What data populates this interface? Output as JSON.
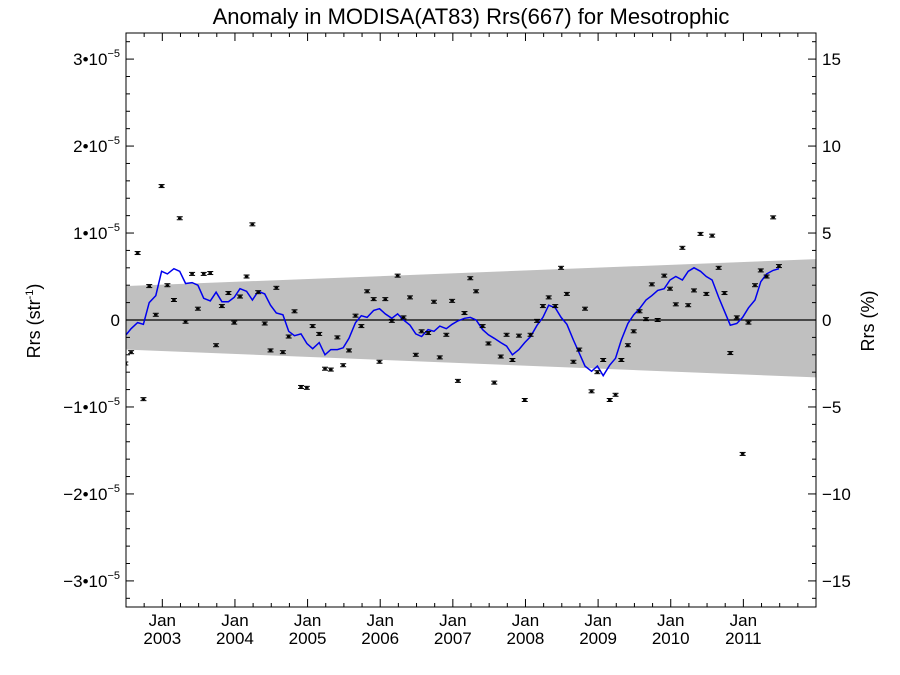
{
  "chart_data": {
    "type": "scatter",
    "title": "Anomaly in MODISA(AT83) Rrs(667) for Mesotrophic",
    "ylabel_left": "Rrs (str",
    "ylabel_left_exp": "-1",
    "ylabel_left_close": ")",
    "ylabel_right": "Rrs (%)",
    "xlim": [
      2002.5,
      2012.0
    ],
    "ylim": [
      -3.3e-05,
      3.3e-05
    ],
    "left_ticks": [
      {
        "value": 3e-05,
        "mantissa": "3",
        "sep": "•",
        "base": "10",
        "exp": "−5"
      },
      {
        "value": 2e-05,
        "mantissa": "2",
        "sep": "•",
        "base": "10",
        "exp": "−5"
      },
      {
        "value": 1e-05,
        "mantissa": "1",
        "sep": "•",
        "base": "10",
        "exp": "−5"
      },
      {
        "value": 0,
        "mantissa": "0",
        "sep": "",
        "base": "",
        "exp": ""
      },
      {
        "value": -1e-05,
        "mantissa": "−1",
        "sep": "•",
        "base": "10",
        "exp": "−5"
      },
      {
        "value": -2e-05,
        "mantissa": "−2",
        "sep": "•",
        "base": "10",
        "exp": "−5"
      },
      {
        "value": -3e-05,
        "mantissa": "−3",
        "sep": "•",
        "base": "10",
        "exp": "−5"
      }
    ],
    "right_ticks": [
      {
        "value": 15,
        "label": "15"
      },
      {
        "value": 10,
        "label": "10"
      },
      {
        "value": 5,
        "label": "5"
      },
      {
        "value": 0,
        "label": "0"
      },
      {
        "value": -5,
        "label": "−5"
      },
      {
        "value": -10,
        "label": "−10"
      },
      {
        "value": -15,
        "label": "−15"
      }
    ],
    "right_scale_rrs_per_percent": 2e-06,
    "x_ticks": [
      {
        "value": 2003.0,
        "month": "Jan",
        "year": "2003"
      },
      {
        "value": 2004.0,
        "month": "Jan",
        "year": "2004"
      },
      {
        "value": 2005.0,
        "month": "Jan",
        "year": "2005"
      },
      {
        "value": 2006.0,
        "month": "Jan",
        "year": "2006"
      },
      {
        "value": 2007.0,
        "month": "Jan",
        "year": "2007"
      },
      {
        "value": 2008.0,
        "month": "Jan",
        "year": "2008"
      },
      {
        "value": 2009.0,
        "month": "Jan",
        "year": "2009"
      },
      {
        "value": 2010.0,
        "month": "Jan",
        "year": "2010"
      },
      {
        "value": 2011.0,
        "month": "Jan",
        "year": "2011"
      }
    ],
    "band": {
      "x": [
        2002.5,
        2012.0
      ],
      "upper": [
        3.9e-06,
        7e-06
      ],
      "lower": [
        -3.4e-06,
        -6.6e-06
      ]
    },
    "zero_line": 0,
    "colors": {
      "band": "#c0c0c0",
      "smooth": "#0000ee",
      "points": "#000000",
      "zero": "#000000"
    },
    "points": [
      [
        2002.49,
        -5e-06
      ],
      [
        2002.57,
        -3.7e-06
      ],
      [
        2002.66,
        7.7e-06
      ],
      [
        2002.74,
        -9.1e-06
      ],
      [
        2002.82,
        3.9e-06
      ],
      [
        2002.91,
        6e-07
      ],
      [
        2002.99,
        1.54e-05
      ],
      [
        2003.07,
        4e-06
      ],
      [
        2003.16,
        2.3e-06
      ],
      [
        2003.24,
        1.17e-05
      ],
      [
        2003.32,
        -2e-07
      ],
      [
        2003.41,
        5.3e-06
      ],
      [
        2003.49,
        1.3e-06
      ],
      [
        2003.57,
        5.3e-06
      ],
      [
        2003.66,
        5.4e-06
      ],
      [
        2003.74,
        -2.9e-06
      ],
      [
        2003.82,
        1.6e-06
      ],
      [
        2003.91,
        3.1e-06
      ],
      [
        2003.99,
        -3e-07
      ],
      [
        2004.07,
        2.7e-06
      ],
      [
        2004.16,
        5e-06
      ],
      [
        2004.24,
        1.1e-05
      ],
      [
        2004.32,
        3.2e-06
      ],
      [
        2004.41,
        -4e-07
      ],
      [
        2004.49,
        -3.5e-06
      ],
      [
        2004.57,
        3.7e-06
      ],
      [
        2004.66,
        -3.7e-06
      ],
      [
        2004.74,
        -1.9e-06
      ],
      [
        2004.82,
        1e-06
      ],
      [
        2004.91,
        -7.7e-06
      ],
      [
        2004.99,
        -7.8e-06
      ],
      [
        2005.07,
        -7e-07
      ],
      [
        2005.16,
        -1.6e-06
      ],
      [
        2005.24,
        -5.6e-06
      ],
      [
        2005.32,
        -5.7e-06
      ],
      [
        2005.41,
        -2e-06
      ],
      [
        2005.49,
        -5.2e-06
      ],
      [
        2005.57,
        -3.5e-06
      ],
      [
        2005.66,
        5e-07
      ],
      [
        2005.74,
        -7e-07
      ],
      [
        2005.82,
        3.3e-06
      ],
      [
        2005.91,
        2.4e-06
      ],
      [
        2005.99,
        -4.8e-06
      ],
      [
        2006.07,
        2.4e-06
      ],
      [
        2006.16,
        -1e-07
      ],
      [
        2006.24,
        5.1e-06
      ],
      [
        2006.32,
        3e-07
      ],
      [
        2006.41,
        2.6e-06
      ],
      [
        2006.49,
        -4e-06
      ],
      [
        2006.57,
        -1.3e-06
      ],
      [
        2006.66,
        -1.5e-06
      ],
      [
        2006.74,
        2.1e-06
      ],
      [
        2006.82,
        -4.3e-06
      ],
      [
        2006.91,
        -1.7e-06
      ],
      [
        2006.99,
        2.2e-06
      ],
      [
        2007.07,
        -7e-06
      ],
      [
        2007.16,
        8e-07
      ],
      [
        2007.24,
        4.8e-06
      ],
      [
        2007.32,
        3.3e-06
      ],
      [
        2007.41,
        -7e-07
      ],
      [
        2007.49,
        -2.7e-06
      ],
      [
        2007.57,
        -7.2e-06
      ],
      [
        2007.66,
        -4.2e-06
      ],
      [
        2007.74,
        -1.7e-06
      ],
      [
        2007.82,
        -4.6e-06
      ],
      [
        2007.91,
        -1.8e-06
      ],
      [
        2007.99,
        -9.2e-06
      ],
      [
        2008.07,
        -1.7e-06
      ],
      [
        2008.16,
        -1e-07
      ],
      [
        2008.24,
        1.6e-06
      ],
      [
        2008.32,
        2.6e-06
      ],
      [
        2008.41,
        1.6e-06
      ],
      [
        2008.49,
        6e-06
      ],
      [
        2008.57,
        3e-06
      ],
      [
        2008.66,
        -4.8e-06
      ],
      [
        2008.74,
        -3.4e-06
      ],
      [
        2008.82,
        1.3e-06
      ],
      [
        2008.91,
        -8.2e-06
      ],
      [
        2008.99,
        -6e-06
      ],
      [
        2009.07,
        -4.6e-06
      ],
      [
        2009.16,
        -9.2e-06
      ],
      [
        2009.24,
        -8.6e-06
      ],
      [
        2009.32,
        -4.6e-06
      ],
      [
        2009.41,
        -2.9e-06
      ],
      [
        2009.49,
        -1.3e-06
      ],
      [
        2009.57,
        1e-06
      ],
      [
        2009.66,
        1e-07
      ],
      [
        2009.74,
        4.1e-06
      ],
      [
        2009.82,
        0.0
      ],
      [
        2009.91,
        5.1e-06
      ],
      [
        2009.99,
        3.6e-06
      ],
      [
        2010.07,
        1.8e-06
      ],
      [
        2010.16,
        8.3e-06
      ],
      [
        2010.24,
        1.7e-06
      ],
      [
        2010.32,
        3.4e-06
      ],
      [
        2010.41,
        9.9e-06
      ],
      [
        2010.49,
        3e-06
      ],
      [
        2010.57,
        9.7e-06
      ],
      [
        2010.66,
        6e-06
      ],
      [
        2010.74,
        3.1e-06
      ],
      [
        2010.82,
        -3.8e-06
      ],
      [
        2010.91,
        3e-07
      ],
      [
        2010.99,
        -1.54e-05
      ],
      [
        2011.07,
        -3e-07
      ],
      [
        2011.16,
        4e-06
      ],
      [
        2011.24,
        5.7e-06
      ],
      [
        2011.32,
        5e-06
      ],
      [
        2011.41,
        1.18e-05
      ],
      [
        2011.49,
        6.2e-06
      ]
    ],
    "smooth": [
      [
        2002.49,
        -1.8e-06
      ],
      [
        2002.57,
        -1e-06
      ],
      [
        2002.66,
        -3e-07
      ],
      [
        2002.74,
        -5e-07
      ],
      [
        2002.82,
        2e-06
      ],
      [
        2002.91,
        2.8e-06
      ],
      [
        2002.99,
        5.6e-06
      ],
      [
        2003.07,
        5.3e-06
      ],
      [
        2003.16,
        5.9e-06
      ],
      [
        2003.24,
        5.6e-06
      ],
      [
        2003.32,
        4.2e-06
      ],
      [
        2003.41,
        4.3e-06
      ],
      [
        2003.49,
        4e-06
      ],
      [
        2003.57,
        2.5e-06
      ],
      [
        2003.66,
        2.2e-06
      ],
      [
        2003.74,
        3.2e-06
      ],
      [
        2003.82,
        2.1e-06
      ],
      [
        2003.91,
        2.1e-06
      ],
      [
        2003.99,
        2.6e-06
      ],
      [
        2004.07,
        3.6e-06
      ],
      [
        2004.16,
        3.3e-06
      ],
      [
        2004.24,
        2.3e-06
      ],
      [
        2004.32,
        3.3e-06
      ],
      [
        2004.41,
        3e-06
      ],
      [
        2004.49,
        1.7e-06
      ],
      [
        2004.57,
        8e-07
      ],
      [
        2004.66,
        6e-07
      ],
      [
        2004.74,
        -1.3e-06
      ],
      [
        2004.82,
        -1.8e-06
      ],
      [
        2004.91,
        -1.6e-06
      ],
      [
        2004.99,
        -2.7e-06
      ],
      [
        2005.07,
        -3.3e-06
      ],
      [
        2005.16,
        -2.6e-06
      ],
      [
        2005.24,
        -4e-06
      ],
      [
        2005.32,
        -3.4e-06
      ],
      [
        2005.41,
        -3.4e-06
      ],
      [
        2005.49,
        -3.2e-06
      ],
      [
        2005.57,
        -2.1e-06
      ],
      [
        2005.66,
        -3e-07
      ],
      [
        2005.74,
        5e-07
      ],
      [
        2005.82,
        3e-07
      ],
      [
        2005.91,
        1.1e-06
      ],
      [
        2005.99,
        1.3e-06
      ],
      [
        2006.07,
        7e-07
      ],
      [
        2006.16,
        2e-07
      ],
      [
        2006.24,
        7e-07
      ],
      [
        2006.32,
        0.0
      ],
      [
        2006.41,
        -6e-07
      ],
      [
        2006.49,
        -1.6e-06
      ],
      [
        2006.57,
        -1.9e-06
      ],
      [
        2006.66,
        -1.1e-06
      ],
      [
        2006.74,
        -1.3e-06
      ],
      [
        2006.82,
        -7e-07
      ],
      [
        2006.91,
        -1e-06
      ],
      [
        2006.99,
        -5e-07
      ],
      [
        2007.07,
        -1e-07
      ],
      [
        2007.16,
        2e-07
      ],
      [
        2007.24,
        3e-07
      ],
      [
        2007.32,
        0.0
      ],
      [
        2007.41,
        -1.1e-06
      ],
      [
        2007.49,
        -1.7e-06
      ],
      [
        2007.57,
        -2.1e-06
      ],
      [
        2007.66,
        -2.6e-06
      ],
      [
        2007.74,
        -3e-06
      ],
      [
        2007.82,
        -4e-06
      ],
      [
        2007.91,
        -3.4e-06
      ],
      [
        2007.99,
        -2.6e-06
      ],
      [
        2008.07,
        -1.9e-06
      ],
      [
        2008.16,
        -6e-07
      ],
      [
        2008.24,
        3e-07
      ],
      [
        2008.32,
        1.7e-06
      ],
      [
        2008.41,
        1.4e-06
      ],
      [
        2008.49,
        3e-07
      ],
      [
        2008.57,
        -5e-07
      ],
      [
        2008.66,
        -2.3e-06
      ],
      [
        2008.74,
        -3.8e-06
      ],
      [
        2008.82,
        -5.3e-06
      ],
      [
        2008.91,
        -5.9e-06
      ],
      [
        2008.99,
        -5.3e-06
      ],
      [
        2009.07,
        -6.4e-06
      ],
      [
        2009.16,
        -5.2e-06
      ],
      [
        2009.24,
        -4.4e-06
      ],
      [
        2009.32,
        -2.3e-06
      ],
      [
        2009.41,
        -4e-07
      ],
      [
        2009.49,
        6e-07
      ],
      [
        2009.57,
        1.3e-06
      ],
      [
        2009.66,
        2.3e-06
      ],
      [
        2009.74,
        2.8e-06
      ],
      [
        2009.82,
        3.4e-06
      ],
      [
        2009.91,
        3.6e-06
      ],
      [
        2009.99,
        4.6e-06
      ],
      [
        2010.07,
        5e-06
      ],
      [
        2010.16,
        4.6e-06
      ],
      [
        2010.24,
        5.6e-06
      ],
      [
        2010.32,
        6e-06
      ],
      [
        2010.41,
        5.6e-06
      ],
      [
        2010.49,
        5e-06
      ],
      [
        2010.57,
        4.6e-06
      ],
      [
        2010.66,
        2.6e-06
      ],
      [
        2010.74,
        1e-06
      ],
      [
        2010.82,
        -6e-07
      ],
      [
        2010.91,
        -4e-07
      ],
      [
        2010.99,
        3e-07
      ],
      [
        2011.07,
        1.4e-06
      ],
      [
        2011.16,
        2.3e-06
      ],
      [
        2011.24,
        4.4e-06
      ],
      [
        2011.32,
        5.3e-06
      ],
      [
        2011.41,
        5.7e-06
      ],
      [
        2011.49,
        5.9e-06
      ]
    ]
  }
}
